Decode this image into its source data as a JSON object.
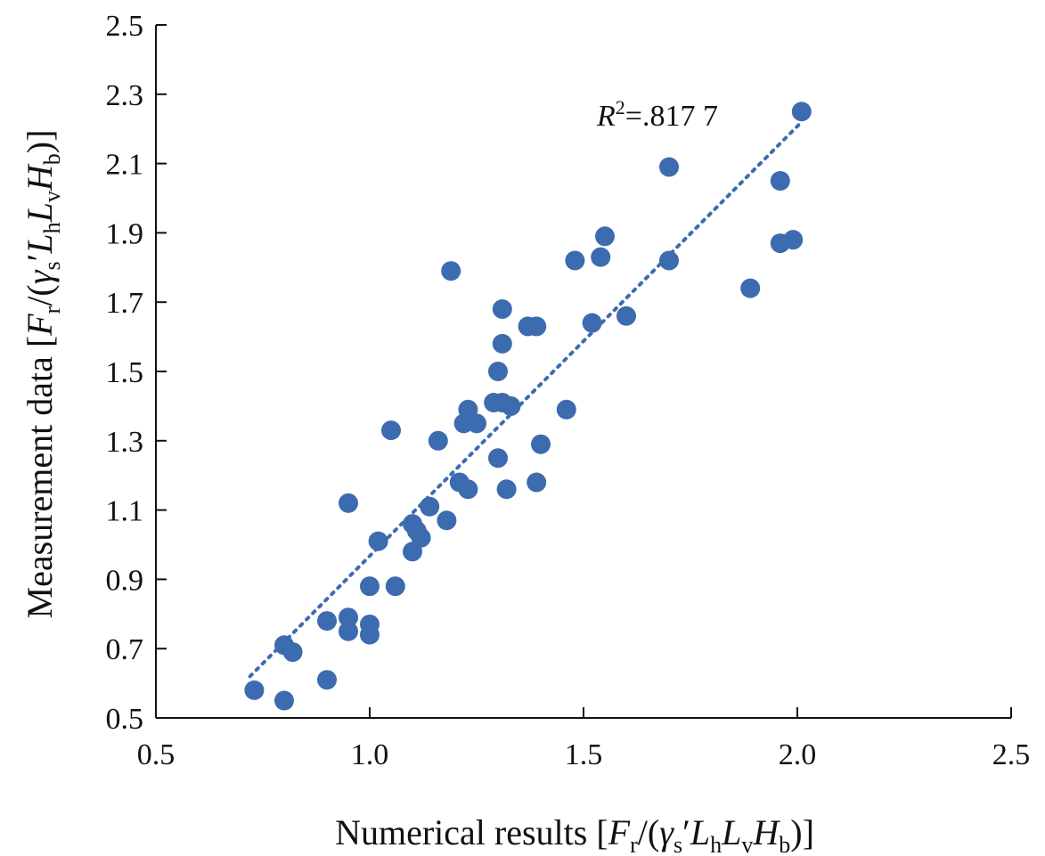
{
  "chart_data": {
    "type": "scatter",
    "xlabel": "Numerical results [Fr/(γs′LhLvHb)]",
    "ylabel": "Measurement data [Fr/(γs′LhLvHb)]",
    "xlim": [
      0.5,
      2.5
    ],
    "ylim": [
      0.5,
      2.5
    ],
    "x_ticks": [
      "0.5",
      "1.0",
      "1.5",
      "2.0",
      "2.5"
    ],
    "y_ticks": [
      "0.5",
      "0.7",
      "0.9",
      "1.1",
      "1.3",
      "1.5",
      "1.7",
      "1.9",
      "2.1",
      "2.3",
      "2.5"
    ],
    "grid": false,
    "marker_color": "#3d6baf",
    "trendline": {
      "style": "dotted",
      "x": [
        0.72,
        2.01
      ],
      "y": [
        0.62,
        2.22
      ]
    },
    "r_squared_label": {
      "prefix": "R",
      "superscript": "2",
      "suffix": "=.817 7"
    },
    "points": [
      {
        "x": 0.73,
        "y": 0.58
      },
      {
        "x": 0.8,
        "y": 0.55
      },
      {
        "x": 0.8,
        "y": 0.71
      },
      {
        "x": 0.82,
        "y": 0.69
      },
      {
        "x": 0.9,
        "y": 0.61
      },
      {
        "x": 0.9,
        "y": 0.78
      },
      {
        "x": 0.95,
        "y": 0.79
      },
      {
        "x": 0.95,
        "y": 0.75
      },
      {
        "x": 0.95,
        "y": 1.12
      },
      {
        "x": 1.0,
        "y": 0.77
      },
      {
        "x": 1.0,
        "y": 0.74
      },
      {
        "x": 1.0,
        "y": 0.88
      },
      {
        "x": 1.02,
        "y": 1.01
      },
      {
        "x": 1.05,
        "y": 1.33
      },
      {
        "x": 1.06,
        "y": 0.88
      },
      {
        "x": 1.1,
        "y": 0.98
      },
      {
        "x": 1.1,
        "y": 1.06
      },
      {
        "x": 1.11,
        "y": 1.04
      },
      {
        "x": 1.12,
        "y": 1.02
      },
      {
        "x": 1.14,
        "y": 1.11
      },
      {
        "x": 1.16,
        "y": 1.3
      },
      {
        "x": 1.18,
        "y": 1.07
      },
      {
        "x": 1.19,
        "y": 1.79
      },
      {
        "x": 1.21,
        "y": 1.18
      },
      {
        "x": 1.22,
        "y": 1.35
      },
      {
        "x": 1.23,
        "y": 1.39
      },
      {
        "x": 1.23,
        "y": 1.16
      },
      {
        "x": 1.25,
        "y": 1.35
      },
      {
        "x": 1.29,
        "y": 1.41
      },
      {
        "x": 1.3,
        "y": 1.5
      },
      {
        "x": 1.3,
        "y": 1.25
      },
      {
        "x": 1.31,
        "y": 1.58
      },
      {
        "x": 1.31,
        "y": 1.68
      },
      {
        "x": 1.31,
        "y": 1.41
      },
      {
        "x": 1.32,
        "y": 1.16
      },
      {
        "x": 1.33,
        "y": 1.4
      },
      {
        "x": 1.37,
        "y": 1.63
      },
      {
        "x": 1.39,
        "y": 1.63
      },
      {
        "x": 1.39,
        "y": 1.18
      },
      {
        "x": 1.4,
        "y": 1.29
      },
      {
        "x": 1.46,
        "y": 1.39
      },
      {
        "x": 1.48,
        "y": 1.82
      },
      {
        "x": 1.52,
        "y": 1.64
      },
      {
        "x": 1.54,
        "y": 1.83
      },
      {
        "x": 1.55,
        "y": 1.89
      },
      {
        "x": 1.6,
        "y": 1.66
      },
      {
        "x": 1.7,
        "y": 2.09
      },
      {
        "x": 1.7,
        "y": 1.82
      },
      {
        "x": 1.89,
        "y": 1.74
      },
      {
        "x": 1.96,
        "y": 1.87
      },
      {
        "x": 1.96,
        "y": 2.05
      },
      {
        "x": 1.99,
        "y": 1.88
      },
      {
        "x": 2.01,
        "y": 2.25
      }
    ]
  }
}
